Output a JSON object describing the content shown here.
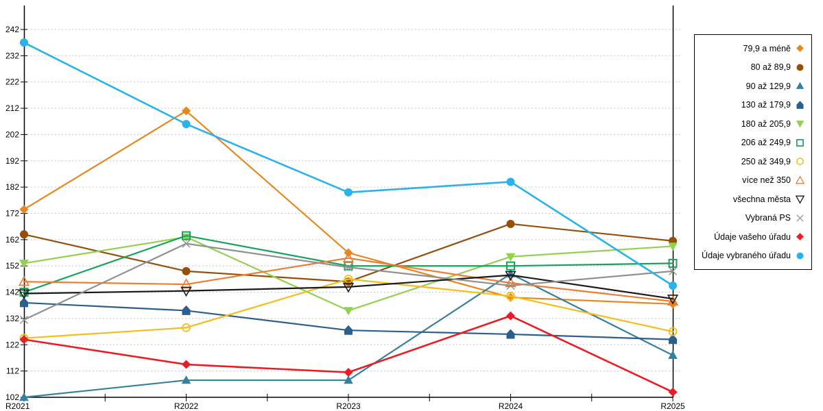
{
  "chart_data": {
    "type": "line",
    "title": "",
    "xlabel": "",
    "ylabel": "",
    "categories": [
      "R2021",
      "R2022",
      "R2023",
      "R2024",
      "R2025"
    ],
    "yticks": [
      102,
      112,
      122,
      132,
      142,
      152,
      162,
      172,
      182,
      192,
      202,
      212,
      222,
      232,
      242
    ],
    "ylim": [
      102,
      242
    ],
    "grid": "horizontal-dashed",
    "legend_position": "right",
    "series": [
      {
        "name": "79,9 a méně",
        "color": "#E8871E",
        "marker": "diamond",
        "fill": "solid",
        "values": [
          173.5,
          211,
          157,
          140,
          137.5
        ]
      },
      {
        "name": "80 až 89,9",
        "color": "#954F0A",
        "marker": "circle",
        "fill": "solid",
        "values": [
          164,
          150,
          146,
          168,
          161.5
        ]
      },
      {
        "name": "90 až 129,9",
        "color": "#35809E",
        "marker": "triangle-up",
        "fill": "solid",
        "values": [
          102,
          108.5,
          108.5,
          149,
          118
        ]
      },
      {
        "name": "130 až 179,9",
        "color": "#2B5F8E",
        "marker": "pentagon",
        "fill": "solid",
        "values": [
          138,
          135,
          127.5,
          126,
          124
        ]
      },
      {
        "name": "180 až 205,9",
        "color": "#92D050",
        "marker": "triangle-down",
        "fill": "solid",
        "values": [
          153,
          163,
          135,
          155.5,
          159.5
        ]
      },
      {
        "name": "206 až 249,9",
        "color": "#13A457",
        "marker": "square",
        "fill": "open",
        "values": [
          142,
          163.5,
          152,
          152,
          153
        ]
      },
      {
        "name": "250 až 349,9",
        "color": "#F6BD16",
        "marker": "circle",
        "fill": "open",
        "values": [
          124.5,
          128.5,
          147,
          140.5,
          127
        ]
      },
      {
        "name": "více než 350",
        "color": "#ED7D31",
        "marker": "triangle-up",
        "fill": "open",
        "values": [
          146,
          145,
          155,
          145.5,
          138.5
        ]
      },
      {
        "name": "všechna města",
        "color": "#1A1A1A",
        "marker": "triangle-down",
        "fill": "open",
        "values": [
          141.5,
          142.5,
          144,
          148.5,
          139.5
        ]
      },
      {
        "name": "Vybraná PS",
        "color": "#909090",
        "marker": "x",
        "fill": "open",
        "values": [
          131.5,
          160.5,
          151.5,
          144.5,
          150
        ]
      },
      {
        "name": "Údaje vašeho úřadu",
        "color": "#EB1C24",
        "marker": "diamond",
        "fill": "solid",
        "values": [
          124,
          114.5,
          111.5,
          133,
          104
        ]
      },
      {
        "name": "Údaje vybraného úřadu",
        "color": "#29B3E8",
        "marker": "circle",
        "fill": "solid",
        "values": [
          237,
          206,
          180,
          184,
          144.5
        ]
      }
    ]
  }
}
